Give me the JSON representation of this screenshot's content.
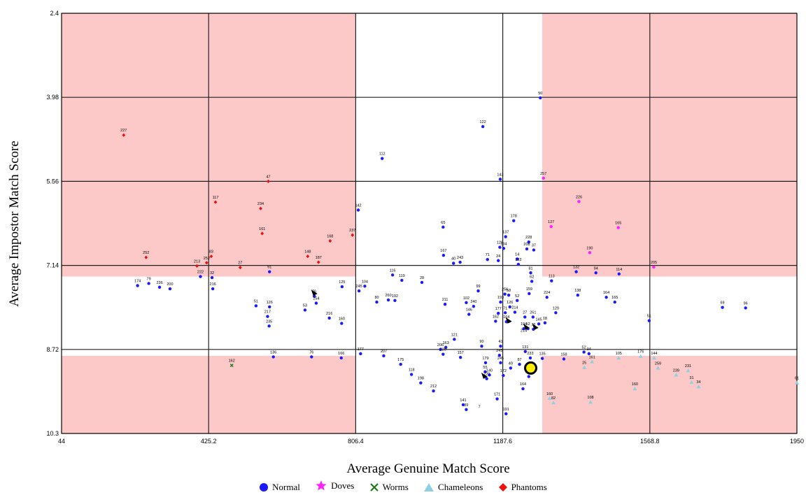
{
  "chart_data": {
    "type": "scatter",
    "title": "",
    "xlabel": "Average Genuine Match Score",
    "ylabel": "Average Impostor Match Score",
    "xlim": [
      44,
      1950
    ],
    "ylim": [
      10.3,
      2.4
    ],
    "y_inverted": true,
    "x_ticks": [
      "44",
      "425.2",
      "806.4",
      "1187.6",
      "1568.8",
      "1950"
    ],
    "y_ticks": [
      "2.4",
      "3.98",
      "5.56",
      "7.14",
      "8.72",
      "10.3"
    ],
    "grid": true,
    "legend_position": "bottom",
    "shaded_regions_color": "#fcc8c8",
    "colors": {
      "Normal": "#1a1aff",
      "Doves": "#ff22ff",
      "Worms": "#1a7a1a",
      "Chameleons": "#8fd0e0",
      "Phantoms": "#ee1111",
      "highlight_fill": "#ffee00"
    },
    "legend": [
      {
        "name": "Normal",
        "marker": "circle",
        "color": "#1a1aff"
      },
      {
        "name": "Doves",
        "marker": "star",
        "color": "#ff22ff"
      },
      {
        "name": "Worms",
        "marker": "x",
        "color": "#1a7a1a"
      },
      {
        "name": "Chameleons",
        "marker": "triangle",
        "color": "#8fd0e0"
      },
      {
        "name": "Phantoms",
        "marker": "diamond",
        "color": "#ee1111"
      }
    ],
    "highlight_point": {
      "x": 1260,
      "y": 9.07
    },
    "series": [
      {
        "name": "Normal",
        "points": [
          [
            1285,
            3.99,
            "50"
          ],
          [
            1136,
            4.53,
            "122"
          ],
          [
            875,
            5.13,
            "112"
          ],
          [
            1181,
            5.52,
            "143"
          ],
          [
            1216,
            6.3,
            "178"
          ],
          [
            813,
            6.1,
            "142"
          ],
          [
            1033,
            6.42,
            "65"
          ],
          [
            1195,
            6.6,
            "137"
          ],
          [
            1180,
            6.8,
            "128"
          ],
          [
            1190,
            6.82,
            "134"
          ],
          [
            1255,
            6.7,
            "228"
          ],
          [
            1250,
            6.83,
            "208"
          ],
          [
            1268,
            6.85,
            "37"
          ],
          [
            1034,
            6.95,
            "167"
          ],
          [
            1060,
            7.1,
            "40"
          ],
          [
            1077,
            7.08,
            "243"
          ],
          [
            1148,
            7.03,
            "71"
          ],
          [
            1176,
            7.05,
            "24"
          ],
          [
            1225,
            7.02,
            "14"
          ],
          [
            1228,
            7.12,
            "133"
          ],
          [
            1260,
            7.28,
            "81"
          ],
          [
            1378,
            7.26,
            "132"
          ],
          [
            1429,
            7.28,
            "94"
          ],
          [
            1489,
            7.3,
            "114"
          ],
          [
            1314,
            7.43,
            "113"
          ],
          [
            1263,
            7.44,
            "62"
          ],
          [
            1256,
            7.67,
            "159"
          ],
          [
            1302,
            7.74,
            "224"
          ],
          [
            1382,
            7.7,
            "138"
          ],
          [
            1456,
            7.74,
            "164"
          ],
          [
            1478,
            7.83,
            "165"
          ],
          [
            1757,
            7.93,
            "69"
          ],
          [
            1817,
            7.94,
            "96"
          ],
          [
            1567,
            8.18,
            "51"
          ],
          [
            1225,
            7.8,
            "52"
          ],
          [
            1206,
            7.92,
            "126"
          ],
          [
            1124,
            7.62,
            "99"
          ],
          [
            1193,
            7.68,
            "256"
          ],
          [
            1203,
            7.7,
            "58"
          ],
          [
            1182,
            7.83,
            "193"
          ],
          [
            1194,
            8.03,
            "71"
          ],
          [
            1176,
            8.04,
            "177"
          ],
          [
            1169,
            8.19,
            "162"
          ],
          [
            1197,
            8.2,
            "164"
          ],
          [
            1219,
            8.02,
            "214"
          ],
          [
            1245,
            8.11,
            "27"
          ],
          [
            1266,
            8.11,
            "261"
          ],
          [
            1281,
            8.24,
            "145"
          ],
          [
            1242,
            8.33,
            "194"
          ],
          [
            1253,
            8.33,
            "52"
          ],
          [
            1267,
            8.34,
            "76"
          ],
          [
            1297,
            8.22,
            "18"
          ],
          [
            1325,
            8.03,
            "129"
          ],
          [
            1038,
            7.87,
            "211"
          ],
          [
            1093,
            7.84,
            "102"
          ],
          [
            1112,
            7.91,
            "240"
          ],
          [
            1100,
            8.06,
            "146"
          ],
          [
            1062,
            8.53,
            "121"
          ],
          [
            1040,
            8.68,
            "163"
          ],
          [
            1026,
            8.72,
            "206"
          ],
          [
            1033,
            8.81,
            "229"
          ],
          [
            1078,
            8.87,
            "157"
          ],
          [
            1133,
            8.66,
            "90"
          ],
          [
            1182,
            8.66,
            "41"
          ],
          [
            1179,
            8.83,
            "245"
          ],
          [
            1182,
            8.97,
            "245"
          ],
          [
            1143,
            8.97,
            "179"
          ],
          [
            1208,
            9.07,
            "49"
          ],
          [
            1189,
            9.21,
            "172"
          ],
          [
            1153,
            9.2,
            "140"
          ],
          [
            1142,
            9.14,
            "55"
          ],
          [
            1146,
            9.27,
            "220"
          ],
          [
            1173,
            9.65,
            "171"
          ],
          [
            1196,
            9.93,
            "191"
          ],
          [
            1085,
            9.76,
            "141"
          ],
          [
            1093,
            9.85,
            "39"
          ],
          [
            1240,
            9.46,
            "164"
          ],
          [
            1255,
            9.23,
            "226"
          ],
          [
            1231,
            9.0,
            "87"
          ],
          [
            1259,
            8.88,
            "233"
          ],
          [
            1290,
            8.89,
            "135"
          ],
          [
            1246,
            8.76,
            "131"
          ],
          [
            1346,
            8.9,
            "158"
          ],
          [
            1398,
            8.77,
            "52"
          ],
          [
            1411,
            8.8,
            "94"
          ],
          [
            902,
            7.32,
            "116"
          ],
          [
            926,
            7.42,
            "119"
          ],
          [
            978,
            7.46,
            "28"
          ],
          [
            891,
            7.79,
            "260"
          ],
          [
            908,
            7.8,
            "192"
          ],
          [
            861,
            7.83,
            "80"
          ],
          [
            830,
            7.53,
            "104"
          ],
          [
            815,
            7.62,
            "245"
          ],
          [
            771,
            7.54,
            "125"
          ],
          [
            699,
            7.72,
            "76"
          ],
          [
            704,
            7.85,
            "254"
          ],
          [
            675,
            7.98,
            "53"
          ],
          [
            583,
            7.92,
            "126"
          ],
          [
            578,
            8.1,
            "217"
          ],
          [
            582,
            8.28,
            "235"
          ],
          [
            593,
            8.86,
            "136"
          ],
          [
            692,
            8.86,
            "76"
          ],
          [
            769,
            8.88,
            "166"
          ],
          [
            819,
            8.8,
            "177"
          ],
          [
            770,
            8.23,
            "160"
          ],
          [
            738,
            8.13,
            "216"
          ],
          [
            548,
            7.9,
            "51"
          ],
          [
            879,
            8.84,
            "207"
          ],
          [
            923,
            9.0,
            "175"
          ],
          [
            951,
            9.19,
            "118"
          ],
          [
            975,
            9.35,
            "198"
          ],
          [
            1008,
            9.5,
            "212"
          ],
          [
            434,
            7.37,
            "32"
          ],
          [
            436,
            7.58,
            "216"
          ],
          [
            404,
            7.35,
            "222"
          ],
          [
            298,
            7.55,
            "236"
          ],
          [
            270,
            7.48,
            "79"
          ],
          [
            241,
            7.52,
            "174"
          ],
          [
            325,
            7.58,
            "200"
          ],
          [
            583,
            7.26,
            "91"
          ]
        ]
      },
      {
        "name": "Doves",
        "points": [
          [
            1293,
            5.5,
            "257"
          ],
          [
            1385,
            5.94,
            "226"
          ],
          [
            1313,
            6.41,
            "127"
          ],
          [
            1487,
            6.43,
            "165"
          ],
          [
            1413,
            6.9,
            "190"
          ],
          [
            1579,
            7.17,
            "205"
          ]
        ]
      },
      {
        "name": "Worms",
        "points": [
          [
            485,
            9.02,
            "162"
          ]
        ]
      },
      {
        "name": "Chameleons",
        "points": [
          [
            1399,
            9.06,
            "25"
          ],
          [
            1419,
            8.95,
            "161"
          ],
          [
            1488,
            8.88,
            "105"
          ],
          [
            1545,
            8.85,
            "176"
          ],
          [
            1580,
            8.88,
            "144"
          ],
          [
            1590,
            9.07,
            "259"
          ],
          [
            1637,
            9.2,
            "239"
          ],
          [
            1668,
            9.12,
            "231"
          ],
          [
            1677,
            9.34,
            "31"
          ],
          [
            1695,
            9.42,
            "34"
          ],
          [
            1530,
            9.46,
            "160"
          ],
          [
            1309,
            9.64,
            "160"
          ],
          [
            1319,
            9.72,
            "82"
          ],
          [
            1415,
            9.71,
            "108"
          ],
          [
            1950,
            9.35,
            "61"
          ]
        ]
      },
      {
        "name": "Phantoms",
        "points": [
          [
            205,
            4.69,
            "227"
          ],
          [
            263,
            6.99,
            "252"
          ],
          [
            580,
            5.56,
            "47"
          ],
          [
            443,
            5.95,
            "117"
          ],
          [
            560,
            6.07,
            "234"
          ],
          [
            564,
            6.54,
            "161"
          ],
          [
            432,
            6.97,
            "83"
          ],
          [
            420,
            7.09,
            "252"
          ],
          [
            395,
            7.15,
            "213"
          ],
          [
            507,
            7.18,
            "27"
          ],
          [
            682,
            6.97,
            "148"
          ],
          [
            740,
            6.68,
            "168"
          ],
          [
            710,
            7.08,
            "187"
          ],
          [
            798,
            6.57,
            "237"
          ]
        ]
      }
    ],
    "extra_labels": [
      [
        1127,
        9.82,
        "7"
      ],
      [
        1242,
        8.39,
        "214"
      ]
    ]
  }
}
